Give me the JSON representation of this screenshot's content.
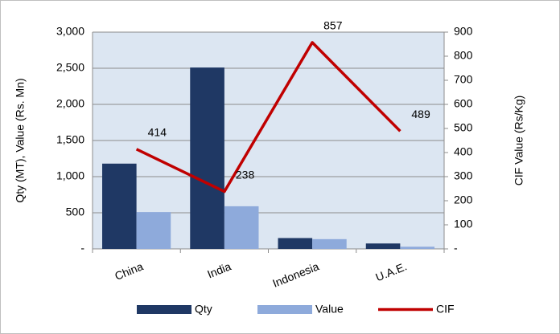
{
  "chart_data": {
    "type": "bar_line",
    "categories": [
      "China",
      "India",
      "Indonesia",
      "U.A.E."
    ],
    "series": [
      {
        "name": "Qty",
        "color": "#1f3864",
        "type": "bar",
        "values": [
          1180,
          2510,
          150,
          75
        ]
      },
      {
        "name": "Value",
        "color": "#8eaadb",
        "type": "bar",
        "values": [
          510,
          590,
          135,
          30
        ]
      },
      {
        "name": "CIF",
        "color": "#c00000",
        "type": "line",
        "axis": "y2",
        "values": [
          414,
          238,
          857,
          489
        ]
      }
    ],
    "ylabel": "Qty (MT),  Value (Rs. Mn)",
    "y2label": "CIF Value (Rs/Kg)",
    "ylim": [
      0,
      3000
    ],
    "yticks": [
      {
        "value": 0,
        "label": "-"
      },
      500,
      {
        "value": 1000,
        "label": "1,000"
      },
      {
        "value": 1500,
        "label": "1,500"
      },
      {
        "value": 2000,
        "label": "2,000"
      },
      {
        "value": 2500,
        "label": "2,500"
      },
      {
        "value": 3000,
        "label": "3,000"
      }
    ],
    "y2lim": [
      0,
      900
    ],
    "y2ticks": [
      {
        "value": 0,
        "label": "-"
      },
      100,
      200,
      300,
      400,
      500,
      600,
      700,
      800,
      900
    ],
    "grid": true,
    "legend": "bottom"
  }
}
